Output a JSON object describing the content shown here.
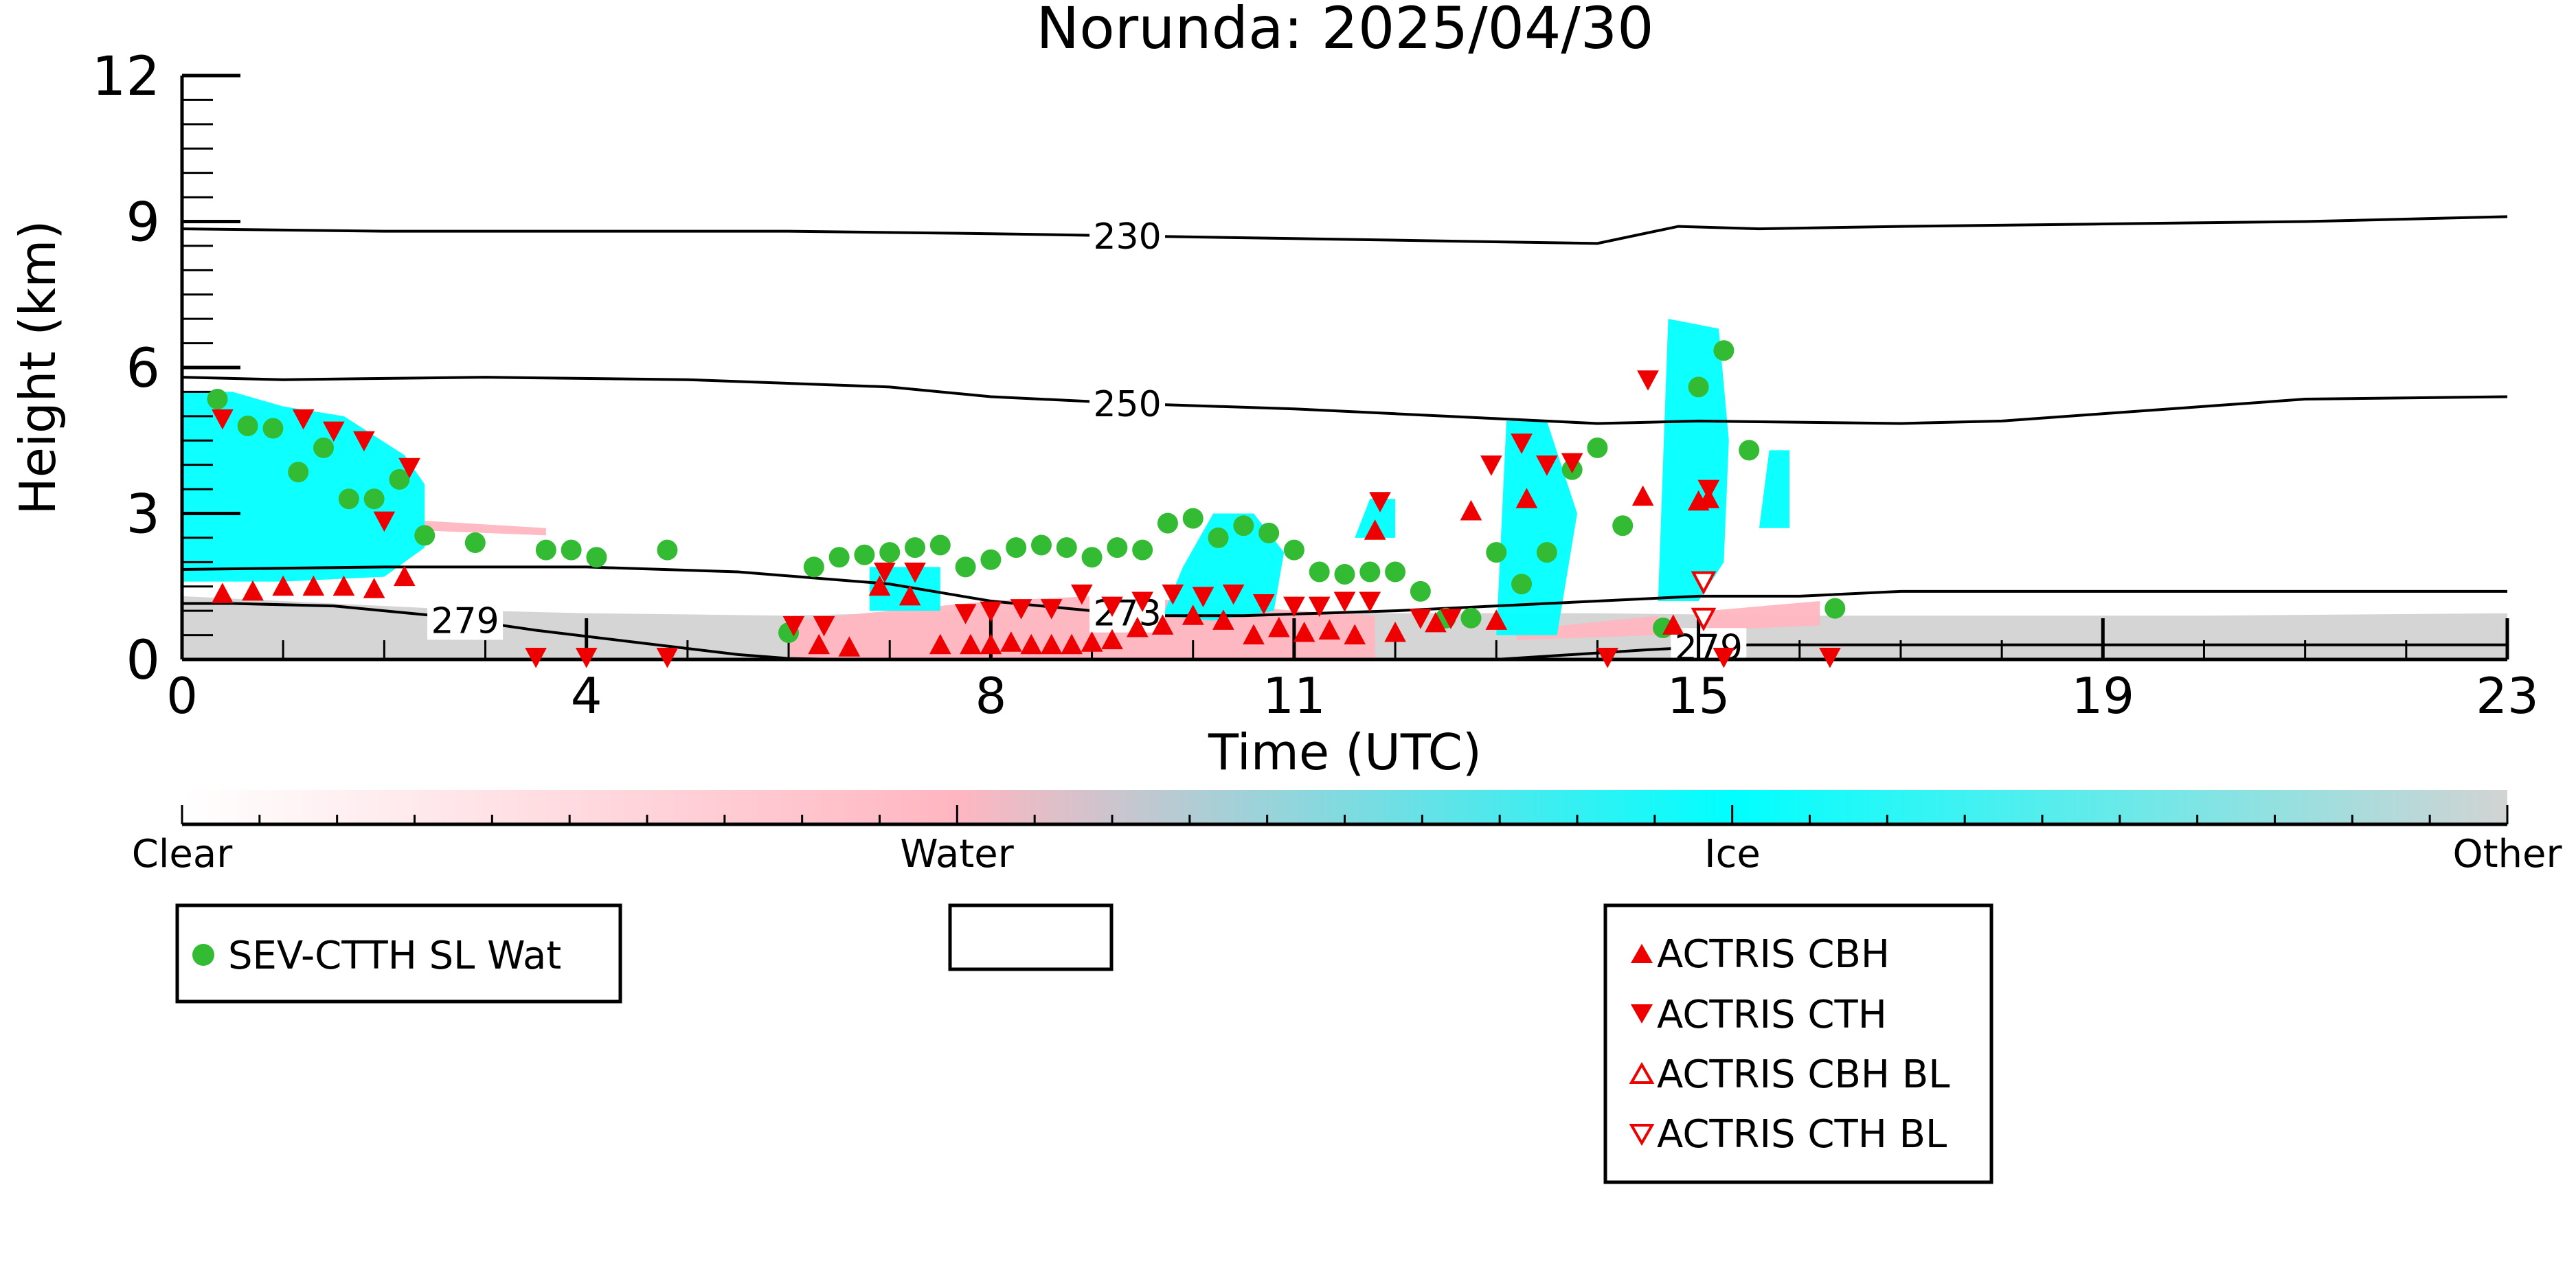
{
  "chart_data": {
    "type": "scatter",
    "title": "Norunda: 2025/04/30",
    "xlabel": "Time (UTC)",
    "ylabel": "Height (km)",
    "xlim": [
      0,
      23
    ],
    "ylim": [
      0,
      12
    ],
    "x_ticks": [
      0,
      4,
      8,
      11,
      15,
      19,
      23
    ],
    "y_ticks": [
      0,
      3,
      6,
      9,
      12
    ],
    "grid": false,
    "colorbar": {
      "labels": [
        "Clear",
        "Water",
        "Ice",
        "Other"
      ],
      "colors": {
        "clear": "#ffffff",
        "water": "#ffb6c1",
        "ice": "#00ffff",
        "other": "#d3d3d3"
      }
    },
    "temperature_contours": [
      {
        "label": "230",
        "x": [
          0,
          2,
          4,
          6,
          8,
          9.5,
          11,
          12.5,
          14,
          14.8,
          15.6,
          17,
          19,
          21,
          23
        ],
        "y": [
          8.85,
          8.8,
          8.8,
          8.8,
          8.75,
          8.7,
          8.65,
          8.6,
          8.55,
          8.9,
          8.85,
          8.9,
          8.95,
          9.0,
          9.1
        ]
      },
      {
        "label": "250",
        "x": [
          0,
          1,
          3,
          5,
          7,
          8,
          9.5,
          11,
          12,
          13,
          14,
          15,
          17,
          18,
          19,
          20,
          21,
          23
        ],
        "y": [
          5.8,
          5.75,
          5.8,
          5.75,
          5.6,
          5.4,
          5.25,
          5.15,
          5.05,
          4.95,
          4.85,
          4.9,
          4.85,
          4.9,
          5.05,
          5.2,
          5.35,
          5.4
        ]
      },
      {
        "label": "273",
        "x": [
          0,
          2,
          4,
          5.5,
          7,
          8,
          9,
          9.6,
          10.5,
          12,
          13,
          14,
          15,
          16,
          17,
          19,
          21,
          23
        ],
        "y": [
          1.85,
          1.9,
          1.9,
          1.8,
          1.55,
          1.2,
          1.0,
          0.9,
          0.9,
          1.0,
          1.1,
          1.2,
          1.3,
          1.3,
          1.4,
          1.4,
          1.4,
          1.4
        ]
      },
      {
        "label": "279",
        "x": [
          0,
          0.5,
          1.5,
          2.5,
          3.5,
          4.5,
          5.5,
          6,
          6.5,
          7,
          10,
          13,
          14.5,
          15.5,
          17,
          19,
          21,
          23
        ],
        "y": [
          1.15,
          1.15,
          1.1,
          0.9,
          0.6,
          0.35,
          0.1,
          0.02,
          0,
          0,
          0,
          0,
          0.2,
          0.3,
          0.3,
          0.3,
          0.3,
          0.3
        ]
      }
    ],
    "series": [
      {
        "name": "SEV-CTTH SL Wat",
        "marker": "filled-circle",
        "color": "#33bb33",
        "points": [
          [
            0.35,
            5.35
          ],
          [
            0.65,
            4.8
          ],
          [
            0.9,
            4.75
          ],
          [
            1.15,
            3.85
          ],
          [
            1.4,
            4.35
          ],
          [
            1.65,
            3.3
          ],
          [
            1.9,
            3.3
          ],
          [
            2.15,
            3.7
          ],
          [
            2.4,
            2.55
          ],
          [
            2.9,
            2.4
          ],
          [
            3.6,
            2.25
          ],
          [
            3.85,
            2.25
          ],
          [
            4.1,
            2.1
          ],
          [
            4.8,
            2.25
          ],
          [
            6.0,
            0.55
          ],
          [
            6.25,
            1.9
          ],
          [
            6.5,
            2.1
          ],
          [
            6.75,
            2.15
          ],
          [
            7.0,
            2.2
          ],
          [
            7.25,
            2.3
          ],
          [
            7.5,
            2.35
          ],
          [
            7.75,
            1.9
          ],
          [
            8.0,
            2.05
          ],
          [
            8.25,
            2.3
          ],
          [
            8.5,
            2.35
          ],
          [
            8.75,
            2.3
          ],
          [
            9.0,
            2.1
          ],
          [
            9.25,
            2.3
          ],
          [
            9.5,
            2.25
          ],
          [
            9.75,
            2.8
          ],
          [
            10.0,
            2.9
          ],
          [
            10.25,
            2.5
          ],
          [
            10.5,
            2.75
          ],
          [
            10.75,
            2.6
          ],
          [
            11.0,
            2.25
          ],
          [
            11.25,
            1.8
          ],
          [
            11.5,
            1.75
          ],
          [
            11.75,
            1.8
          ],
          [
            12.0,
            1.8
          ],
          [
            12.25,
            1.4
          ],
          [
            12.5,
            0.85
          ],
          [
            12.75,
            0.85
          ],
          [
            13.0,
            2.2
          ],
          [
            13.25,
            1.55
          ],
          [
            13.5,
            2.2
          ],
          [
            13.75,
            3.9
          ],
          [
            14.0,
            4.35
          ],
          [
            14.25,
            2.75
          ],
          [
            14.65,
            0.65
          ],
          [
            15.0,
            5.6
          ],
          [
            15.25,
            6.35
          ],
          [
            15.5,
            4.3
          ],
          [
            16.35,
            1.05
          ]
        ]
      },
      {
        "name": "ACTRIS CBH",
        "marker": "filled-triangle-up",
        "color": "#ee0000",
        "points": [
          [
            0.4,
            1.35
          ],
          [
            0.7,
            1.4
          ],
          [
            1.0,
            1.5
          ],
          [
            1.3,
            1.5
          ],
          [
            1.6,
            1.5
          ],
          [
            1.9,
            1.45
          ],
          [
            2.2,
            1.7
          ],
          [
            6.3,
            0.3
          ],
          [
            6.6,
            0.25
          ],
          [
            6.9,
            1.5
          ],
          [
            7.2,
            1.3
          ],
          [
            7.5,
            0.3
          ],
          [
            7.8,
            0.3
          ],
          [
            8.0,
            0.3
          ],
          [
            8.2,
            0.35
          ],
          [
            8.4,
            0.3
          ],
          [
            8.6,
            0.3
          ],
          [
            8.8,
            0.3
          ],
          [
            9.0,
            0.35
          ],
          [
            9.2,
            0.4
          ],
          [
            9.45,
            0.65
          ],
          [
            9.7,
            0.7
          ],
          [
            10.0,
            0.9
          ],
          [
            10.3,
            0.8
          ],
          [
            10.6,
            0.5
          ],
          [
            10.85,
            0.65
          ],
          [
            11.1,
            0.55
          ],
          [
            11.35,
            0.6
          ],
          [
            11.6,
            0.5
          ],
          [
            11.8,
            2.65
          ],
          [
            12.0,
            0.55
          ],
          [
            12.4,
            0.75
          ],
          [
            12.75,
            3.05
          ],
          [
            13.0,
            0.8
          ],
          [
            13.3,
            3.3
          ],
          [
            14.45,
            3.35
          ],
          [
            14.75,
            0.7
          ],
          [
            15.0,
            3.25
          ],
          [
            15.1,
            3.3
          ]
        ]
      },
      {
        "name": "ACTRIS CTH",
        "marker": "filled-triangle-down",
        "color": "#ee0000",
        "points": [
          [
            0.4,
            4.95
          ],
          [
            1.2,
            4.95
          ],
          [
            1.5,
            4.7
          ],
          [
            1.8,
            4.5
          ],
          [
            2.25,
            3.95
          ],
          [
            2.0,
            2.85
          ],
          [
            3.5,
            0.05
          ],
          [
            4.0,
            0.05
          ],
          [
            4.8,
            0.05
          ],
          [
            6.05,
            0.7
          ],
          [
            6.35,
            0.7
          ],
          [
            6.95,
            1.8
          ],
          [
            7.25,
            1.8
          ],
          [
            7.75,
            0.95
          ],
          [
            8.0,
            1.0
          ],
          [
            8.3,
            1.05
          ],
          [
            8.6,
            1.05
          ],
          [
            8.9,
            1.35
          ],
          [
            9.2,
            1.1
          ],
          [
            9.5,
            1.2
          ],
          [
            9.8,
            1.35
          ],
          [
            10.1,
            1.3
          ],
          [
            10.4,
            1.35
          ],
          [
            10.7,
            1.15
          ],
          [
            11.0,
            1.1
          ],
          [
            11.25,
            1.1
          ],
          [
            11.5,
            1.2
          ],
          [
            11.75,
            1.2
          ],
          [
            11.85,
            3.25
          ],
          [
            12.25,
            0.85
          ],
          [
            12.55,
            0.85
          ],
          [
            12.95,
            4.0
          ],
          [
            13.25,
            4.45
          ],
          [
            13.5,
            4.0
          ],
          [
            13.75,
            4.05
          ],
          [
            14.1,
            0.05
          ],
          [
            14.5,
            5.75
          ],
          [
            15.1,
            3.5
          ],
          [
            15.25,
            0.05
          ],
          [
            16.3,
            0.05
          ]
        ]
      },
      {
        "name": "ACTRIS CBH BL",
        "marker": "open-triangle-up",
        "color": "#ee0000",
        "points": []
      },
      {
        "name": "ACTRIS CTH BL",
        "marker": "open-triangle-down",
        "color": "#ee0000",
        "points": [
          [
            15.05,
            1.6
          ],
          [
            15.05,
            0.85
          ]
        ]
      }
    ],
    "legend_boxes": [
      {
        "entries": [
          "SEV-CTTH SL Wat"
        ]
      },
      {
        "entries": []
      },
      {
        "entries": [
          "ACTRIS CBH",
          "ACTRIS CTH",
          "ACTRIS CBH BL",
          "ACTRIS CTH BL"
        ]
      }
    ]
  }
}
